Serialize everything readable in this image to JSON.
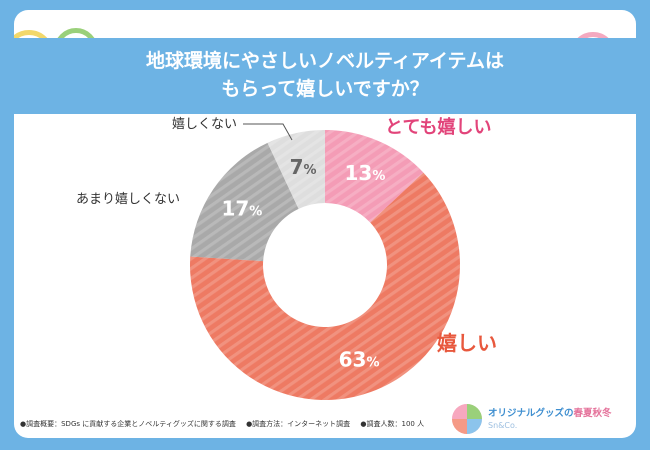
{
  "title": {
    "line1": "地球環境にやさしいノベルティアイテムは",
    "line2": "もらって嬉しいですか？"
  },
  "chart_data": {
    "type": "pie",
    "style": "donut",
    "title": "地球環境にやさしいノベルティアイテムはもらって嬉しいですか？",
    "unit": "%",
    "categories": [
      "とても嬉しい",
      "嬉しい",
      "あまり嬉しくない",
      "嬉しくない"
    ],
    "values": [
      13,
      63,
      17,
      7
    ],
    "colors": [
      "#f49cb6",
      "#ee7a63",
      "#a9a9a9",
      "#dedede"
    ],
    "label_colors": [
      "#e2447a",
      "#e8583d",
      "#333333",
      "#333333"
    ],
    "value_label_colors": [
      "#ffffff",
      "#ffffff",
      "#ffffff",
      "#666666"
    ]
  },
  "footnotes": [
    "●調査概要：SDGs に貢献する企業とノベルティグッズに関する調査",
    "●調査方法：インターネット調査",
    "●調査人数：100 人"
  ],
  "logo": {
    "name": "オリジナルグッズの",
    "season": "春夏秋冬",
    "sub": "Sn&Co."
  }
}
